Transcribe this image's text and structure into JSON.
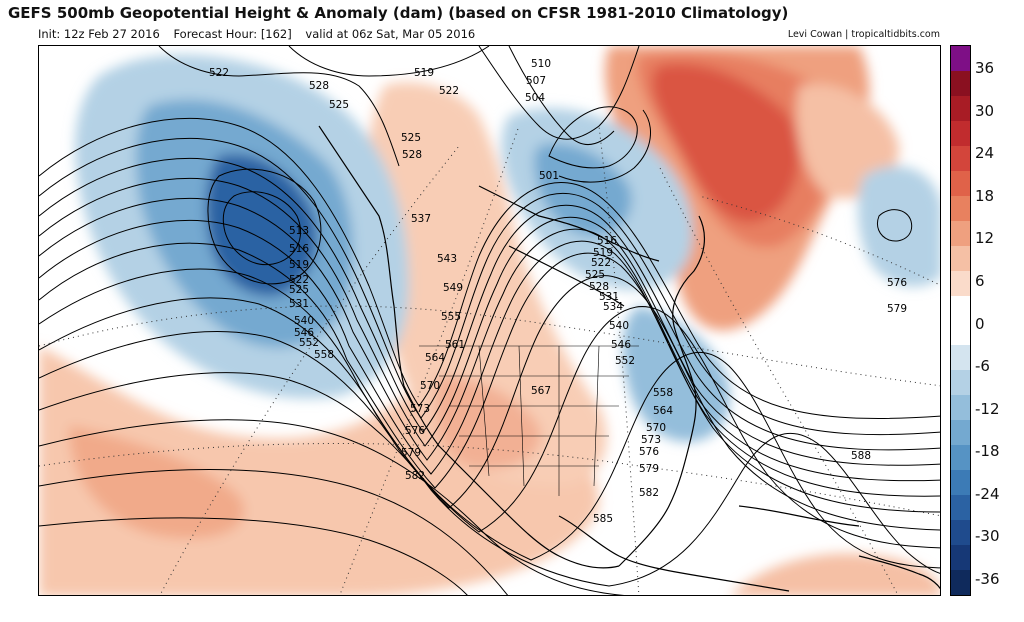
{
  "header": {
    "title": "GEFS 500mb Geopotential Height & Anomaly (dam) (based on CFSR 1981-2010 Climatology)",
    "init": "Init: 12z Feb 27 2016",
    "forecast_hour": "Forecast Hour: [162]",
    "valid": "valid at 06z Sat, Mar 05 2016",
    "credit": "Levi Cowan | tropicaltidbits.com"
  },
  "colorbar": {
    "ticks": [
      "36",
      "30",
      "24",
      "18",
      "12",
      "6",
      "0",
      "-6",
      "-12",
      "-18",
      "-24",
      "-30",
      "-36"
    ],
    "colors": [
      "#7e0f86",
      "#8a1020",
      "#a81c25",
      "#c12c2e",
      "#d3453b",
      "#e06249",
      "#e8815f",
      "#efa07f",
      "#f5c0a5",
      "#fadbca",
      "#ffffff",
      "#ffffff",
      "#d4e4ef",
      "#b4d1e5",
      "#94bedb",
      "#74a9d0",
      "#5693c4",
      "#3c7bb6",
      "#2b62a3",
      "#1f4b8d",
      "#163876",
      "#0f2a5c"
    ]
  },
  "contour_labels": [
    "522",
    "528",
    "525",
    "519",
    "522",
    "510",
    "507",
    "504",
    "501",
    "525",
    "528",
    "537",
    "543",
    "549",
    "555",
    "561",
    "564",
    "570",
    "573",
    "576",
    "579",
    "582",
    "585",
    "567",
    "513",
    "516",
    "519",
    "522",
    "525",
    "531",
    "540",
    "546",
    "552",
    "558",
    "516",
    "519",
    "522",
    "525",
    "528",
    "531",
    "534",
    "540",
    "546",
    "552",
    "558",
    "564",
    "570",
    "573",
    "576",
    "579",
    "582",
    "576",
    "579",
    "588"
  ]
}
